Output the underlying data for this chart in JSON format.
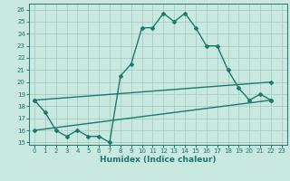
{
  "line1_x": [
    0,
    1,
    2,
    3,
    4,
    5,
    6,
    7,
    8,
    9,
    10,
    11,
    12,
    13,
    14,
    15,
    16,
    17,
    18,
    19,
    20,
    21,
    22
  ],
  "line1_y": [
    18.5,
    17.5,
    16.0,
    15.5,
    16.0,
    15.5,
    15.5,
    15.0,
    20.5,
    21.5,
    24.5,
    24.5,
    25.7,
    25.0,
    25.7,
    24.5,
    23.0,
    23.0,
    21.0,
    19.5,
    18.5,
    19.0,
    18.5
  ],
  "line2_x": [
    0,
    22
  ],
  "line2_y": [
    18.5,
    20.0
  ],
  "line3_x": [
    0,
    22
  ],
  "line3_y": [
    16.0,
    18.5
  ],
  "color": "#1a7a6e",
  "bg_color": "#c8e8e0",
  "grid_color": "#a0c8c0",
  "xlim": [
    -0.5,
    23.5
  ],
  "ylim": [
    14.8,
    26.5
  ],
  "xticks": [
    0,
    1,
    2,
    3,
    4,
    5,
    6,
    7,
    8,
    9,
    10,
    11,
    12,
    13,
    14,
    15,
    16,
    17,
    18,
    19,
    20,
    21,
    22,
    23
  ],
  "yticks": [
    15,
    16,
    17,
    18,
    19,
    20,
    21,
    22,
    23,
    24,
    25,
    26
  ],
  "xlabel": "Humidex (Indice chaleur)",
  "tick_fontsize": 5.0,
  "xlabel_fontsize": 6.5,
  "linewidth": 1.0,
  "marker": "D",
  "markersize": 2.0
}
